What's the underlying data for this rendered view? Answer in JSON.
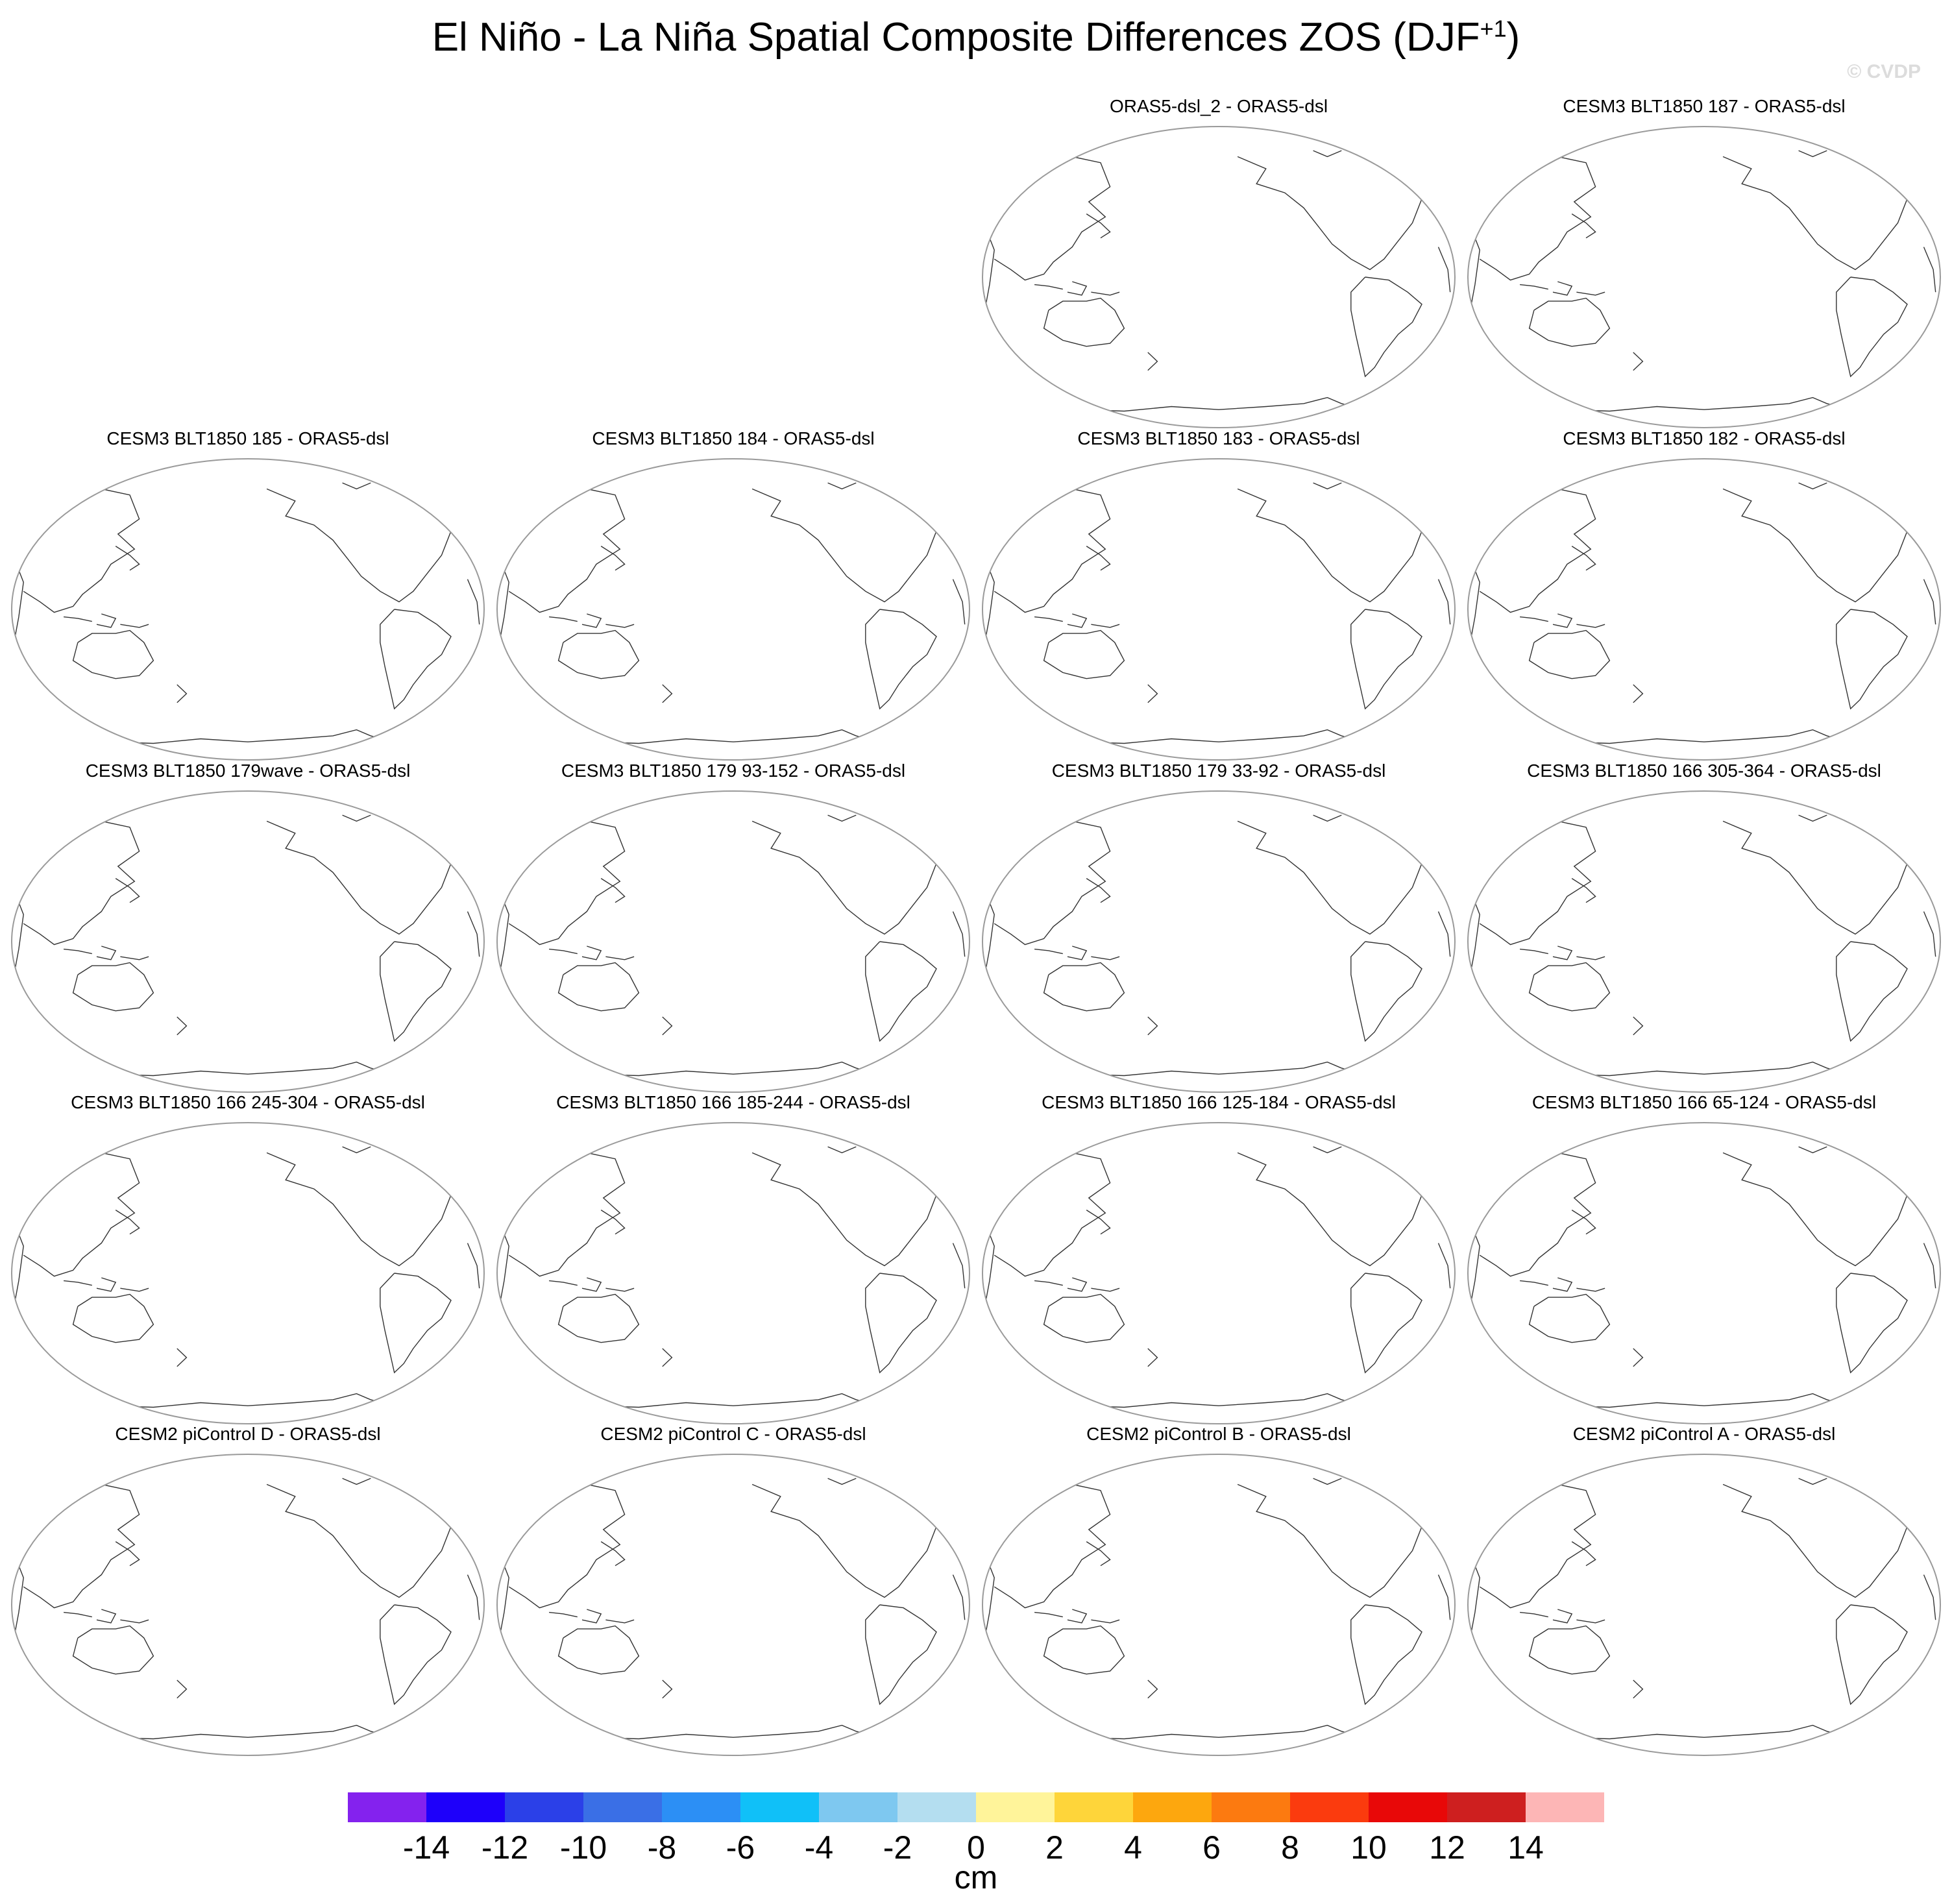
{
  "title": "El Niño - La Niña Spatial Composite Differences ZOS (DJF",
  "title_superscript": "+1",
  "title_close": ")",
  "watermark": "© CVDP",
  "panels": [
    {
      "row": 0,
      "col": 2,
      "title": "ORAS5-dsl_2 - ORAS5-dsl"
    },
    {
      "row": 0,
      "col": 3,
      "title": "CESM3 BLT1850 187 - ORAS5-dsl"
    },
    {
      "row": 1,
      "col": 0,
      "title": "CESM3 BLT1850 185 - ORAS5-dsl"
    },
    {
      "row": 1,
      "col": 1,
      "title": "CESM3 BLT1850 184 - ORAS5-dsl"
    },
    {
      "row": 1,
      "col": 2,
      "title": "CESM3 BLT1850 183 - ORAS5-dsl"
    },
    {
      "row": 1,
      "col": 3,
      "title": "CESM3 BLT1850 182 - ORAS5-dsl"
    },
    {
      "row": 2,
      "col": 0,
      "title": "CESM3 BLT1850 179wave - ORAS5-dsl"
    },
    {
      "row": 2,
      "col": 1,
      "title": "CESM3 BLT1850 179 93-152 - ORAS5-dsl"
    },
    {
      "row": 2,
      "col": 2,
      "title": "CESM3 BLT1850 179 33-92 - ORAS5-dsl"
    },
    {
      "row": 2,
      "col": 3,
      "title": "CESM3 BLT1850 166 305-364 - ORAS5-dsl"
    },
    {
      "row": 3,
      "col": 0,
      "title": "CESM3 BLT1850 166 245-304 - ORAS5-dsl"
    },
    {
      "row": 3,
      "col": 1,
      "title": "CESM3 BLT1850 166 185-244 - ORAS5-dsl"
    },
    {
      "row": 3,
      "col": 2,
      "title": "CESM3 BLT1850 166 125-184 - ORAS5-dsl"
    },
    {
      "row": 3,
      "col": 3,
      "title": "CESM3 BLT1850 166 65-124 - ORAS5-dsl"
    },
    {
      "row": 4,
      "col": 0,
      "title": "CESM2 piControl D - ORAS5-dsl"
    },
    {
      "row": 4,
      "col": 1,
      "title": "CESM2 piControl C - ORAS5-dsl"
    },
    {
      "row": 4,
      "col": 2,
      "title": "CESM2 piControl B - ORAS5-dsl"
    },
    {
      "row": 4,
      "col": 3,
      "title": "CESM2 piControl A - ORAS5-dsl"
    }
  ],
  "colorbar": {
    "units": "cm",
    "labels": [
      "-14",
      "-12",
      "-10",
      "-8",
      "-6",
      "-4",
      "-2",
      "0",
      "2",
      "4",
      "6",
      "8",
      "10",
      "12",
      "14"
    ],
    "colors": [
      "#8422ee",
      "#1e00fa",
      "#2b40e8",
      "#3a6fe6",
      "#2c8ff5",
      "#10c0f8",
      "#7ec8f0",
      "#b4def0",
      "#fff49a",
      "#fed53a",
      "#fda70e",
      "#fc7a10",
      "#fb3b0e",
      "#e80808",
      "#ce1f1f",
      "#fdb6b6"
    ]
  }
}
